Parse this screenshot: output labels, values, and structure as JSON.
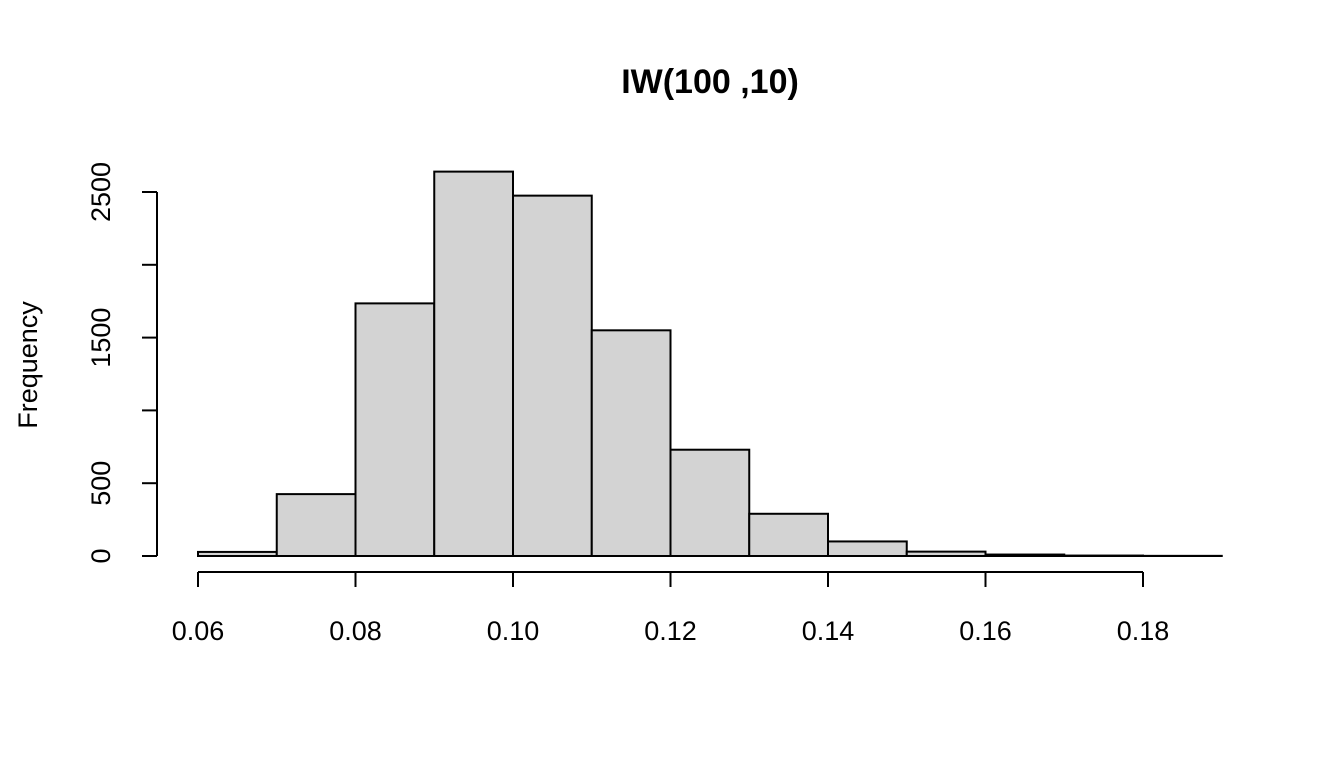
{
  "chart_data": {
    "type": "bar",
    "subtype": "histogram",
    "title": "IW(100 ,10)",
    "xlabel": "",
    "ylabel": "Frequency",
    "bins": [
      {
        "x0": 0.06,
        "x1": 0.07,
        "count": 28
      },
      {
        "x0": 0.07,
        "x1": 0.08,
        "count": 425
      },
      {
        "x0": 0.08,
        "x1": 0.09,
        "count": 1735
      },
      {
        "x0": 0.09,
        "x1": 0.1,
        "count": 2640
      },
      {
        "x0": 0.1,
        "x1": 0.11,
        "count": 2475
      },
      {
        "x0": 0.11,
        "x1": 0.12,
        "count": 1550
      },
      {
        "x0": 0.12,
        "x1": 0.13,
        "count": 730
      },
      {
        "x0": 0.13,
        "x1": 0.14,
        "count": 290
      },
      {
        "x0": 0.14,
        "x1": 0.15,
        "count": 100
      },
      {
        "x0": 0.15,
        "x1": 0.16,
        "count": 30
      },
      {
        "x0": 0.16,
        "x1": 0.17,
        "count": 10
      },
      {
        "x0": 0.17,
        "x1": 0.18,
        "count": 3
      },
      {
        "x0": 0.18,
        "x1": 0.19,
        "count": 1
      }
    ],
    "xticks": [
      {
        "value": 0.06,
        "label": "0.06"
      },
      {
        "value": 0.08,
        "label": "0.08"
      },
      {
        "value": 0.1,
        "label": "0.10"
      },
      {
        "value": 0.12,
        "label": "0.12"
      },
      {
        "value": 0.14,
        "label": "0.14"
      },
      {
        "value": 0.16,
        "label": "0.16"
      },
      {
        "value": 0.18,
        "label": "0.18"
      }
    ],
    "yticks": [
      {
        "value": 0,
        "label": "0"
      },
      {
        "value": 500,
        "label": "500"
      },
      {
        "value": 1000,
        "label": ""
      },
      {
        "value": 1500,
        "label": "1500"
      },
      {
        "value": 2000,
        "label": ""
      },
      {
        "value": 2500,
        "label": "2500"
      }
    ],
    "xaxis_range": [
      0.06,
      0.18
    ],
    "xlim": [
      0.06,
      0.19
    ],
    "ylim": [
      0,
      2640
    ],
    "grid": false,
    "legend": "none",
    "colors": {
      "bar_fill": "#d3d3d3",
      "bar_stroke": "#000000",
      "text": "#000000",
      "background": "#ffffff"
    }
  }
}
